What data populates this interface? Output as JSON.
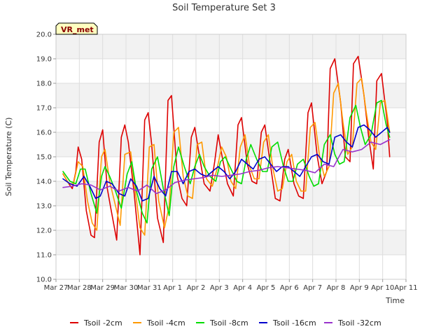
{
  "chart_data": {
    "type": "line",
    "title": "Soil Temperature Set 3",
    "xlabel": "Time",
    "ylabel": "Soil Temperature (C)",
    "badge": "VR_met",
    "ylim": [
      10.0,
      20.0
    ],
    "yticks": [
      "10.0",
      "11.0",
      "12.0",
      "13.0",
      "14.0",
      "15.0",
      "16.0",
      "17.0",
      "18.0",
      "19.0",
      "20.0"
    ],
    "xlim": [
      0,
      15
    ],
    "xticks": [
      "Mar 27",
      "Mar 28",
      "Mar 29",
      "Mar 30",
      "Mar 31",
      "Apr 1",
      "Apr 2",
      "Apr 3",
      "Apr 4",
      "Apr 5",
      "Apr 6",
      "Apr 7",
      "Apr 8",
      "Apr 9",
      "Apr 10",
      "Apr 11"
    ],
    "grid": true,
    "band_background": true,
    "legend_position": "bottom",
    "series": [
      {
        "name": "Tsoil -2cm",
        "color": "#dd0000",
        "x": [
          0.3,
          0.55,
          0.7,
          0.85,
          0.95,
          1.1,
          1.3,
          1.5,
          1.65,
          1.85,
          2.0,
          2.2,
          2.35,
          2.6,
          2.8,
          2.95,
          3.1,
          3.35,
          3.6,
          3.8,
          3.95,
          4.1,
          4.35,
          4.6,
          4.8,
          4.95,
          5.2,
          5.4,
          5.6,
          5.8,
          5.95,
          6.1,
          6.35,
          6.6,
          6.8,
          6.95,
          7.1,
          7.35,
          7.6,
          7.8,
          7.95,
          8.2,
          8.4,
          8.6,
          8.8,
          8.95,
          9.2,
          9.4,
          9.6,
          9.8,
          9.95,
          10.2,
          10.4,
          10.6,
          10.8,
          10.95,
          11.2,
          11.4,
          11.6,
          11.75,
          11.95,
          12.2,
          12.4,
          12.6,
          12.75,
          12.95,
          13.2,
          13.4,
          13.6,
          13.75,
          13.95,
          14.2,
          14.3
        ],
        "values": [
          14.3,
          13.9,
          13.7,
          14.4,
          15.4,
          14.9,
          12.8,
          11.8,
          11.7,
          15.6,
          16.1,
          13.7,
          12.9,
          11.6,
          15.8,
          16.3,
          15.6,
          13.5,
          11.0,
          16.5,
          16.8,
          15.5,
          12.5,
          11.5,
          17.3,
          17.5,
          14.2,
          13.3,
          13.0,
          15.8,
          16.2,
          15.3,
          13.9,
          13.6,
          14.8,
          15.9,
          15.1,
          13.9,
          13.4,
          16.3,
          16.6,
          14.7,
          14.0,
          13.9,
          16.0,
          16.3,
          14.6,
          13.3,
          13.2,
          14.9,
          15.3,
          13.9,
          13.4,
          13.3,
          16.8,
          17.2,
          15.0,
          13.9,
          14.4,
          18.6,
          19.0,
          17.2,
          15.0,
          14.8,
          18.8,
          19.1,
          17.5,
          15.8,
          14.5,
          18.1,
          18.4,
          16.4,
          15.0
        ]
      },
      {
        "name": "Tsoil -4cm",
        "color": "#ff9900",
        "x": [
          0.3,
          0.55,
          0.75,
          0.95,
          1.15,
          1.35,
          1.55,
          1.75,
          1.95,
          2.1,
          2.3,
          2.55,
          2.75,
          2.95,
          3.2,
          3.4,
          3.6,
          3.8,
          4.0,
          4.2,
          4.4,
          4.65,
          4.85,
          5.05,
          5.25,
          5.45,
          5.65,
          5.85,
          6.05,
          6.25,
          6.45,
          6.7,
          6.9,
          7.1,
          7.3,
          7.5,
          7.7,
          7.9,
          8.1,
          8.3,
          8.5,
          8.7,
          8.9,
          9.1,
          9.3,
          9.5,
          9.7,
          9.9,
          10.1,
          10.3,
          10.5,
          10.7,
          10.9,
          11.1,
          11.3,
          11.5,
          11.7,
          11.9,
          12.1,
          12.3,
          12.5,
          12.7,
          12.9,
          13.1,
          13.3,
          13.5,
          13.7,
          13.9,
          14.1,
          14.3
        ],
        "values": [
          14.3,
          13.9,
          13.9,
          14.8,
          14.6,
          13.2,
          12.3,
          12.0,
          15.0,
          15.3,
          14.0,
          13.0,
          12.2,
          15.1,
          15.2,
          13.6,
          12.1,
          11.8,
          15.4,
          15.5,
          13.2,
          12.1,
          13.0,
          16.0,
          16.2,
          14.2,
          13.4,
          13.3,
          15.5,
          15.6,
          14.1,
          13.8,
          14.5,
          15.4,
          15.0,
          14.0,
          13.7,
          15.4,
          15.9,
          14.6,
          14.1,
          14.1,
          15.6,
          15.9,
          14.5,
          13.6,
          13.7,
          14.8,
          15.1,
          14.0,
          13.6,
          13.6,
          16.2,
          16.4,
          15.0,
          14.2,
          14.6,
          17.6,
          18.0,
          16.4,
          15.1,
          15.4,
          18.0,
          18.2,
          16.8,
          15.6,
          15.3,
          17.2,
          17.3,
          16.0
        ]
      },
      {
        "name": "Tsoil -8cm",
        "color": "#00dd00",
        "x": [
          0.3,
          0.6,
          0.85,
          1.05,
          1.25,
          1.5,
          1.75,
          1.95,
          2.1,
          2.3,
          2.55,
          2.8,
          3.05,
          3.25,
          3.45,
          3.7,
          3.9,
          4.1,
          4.35,
          4.6,
          4.85,
          5.05,
          5.25,
          5.5,
          5.75,
          5.95,
          6.15,
          6.35,
          6.6,
          6.85,
          7.05,
          7.25,
          7.5,
          7.75,
          7.95,
          8.15,
          8.35,
          8.6,
          8.85,
          9.05,
          9.25,
          9.5,
          9.75,
          9.95,
          10.15,
          10.35,
          10.6,
          10.85,
          11.05,
          11.25,
          11.5,
          11.75,
          11.95,
          12.15,
          12.35,
          12.6,
          12.85,
          13.05,
          13.25,
          13.5,
          13.75,
          13.95,
          14.15,
          14.3
        ],
        "values": [
          14.4,
          14.0,
          13.9,
          14.5,
          14.5,
          13.5,
          12.7,
          14.2,
          14.6,
          14.2,
          13.6,
          12.9,
          14.3,
          14.8,
          13.6,
          12.7,
          12.3,
          14.5,
          15.0,
          13.7,
          12.6,
          14.6,
          15.4,
          14.6,
          13.9,
          14.6,
          15.1,
          14.6,
          14.2,
          14.0,
          14.8,
          15.0,
          14.5,
          14.0,
          13.9,
          14.9,
          15.5,
          14.9,
          14.4,
          14.4,
          15.4,
          15.6,
          14.6,
          14.0,
          14.0,
          14.7,
          14.9,
          14.2,
          13.8,
          13.9,
          15.5,
          15.9,
          15.1,
          14.7,
          14.8,
          16.6,
          17.1,
          16.2,
          15.5,
          15.9,
          17.2,
          17.3,
          16.3,
          15.8
        ]
      },
      {
        "name": "Tsoil -16cm",
        "color": "#0000cc",
        "x": [
          0.3,
          0.6,
          0.9,
          1.2,
          1.45,
          1.7,
          1.9,
          2.15,
          2.4,
          2.7,
          2.95,
          3.2,
          3.45,
          3.7,
          3.95,
          4.2,
          4.45,
          4.7,
          4.95,
          5.2,
          5.45,
          5.7,
          5.95,
          6.2,
          6.45,
          6.7,
          6.95,
          7.2,
          7.45,
          7.7,
          7.95,
          8.2,
          8.45,
          8.7,
          8.95,
          9.2,
          9.45,
          9.7,
          9.95,
          10.2,
          10.45,
          10.7,
          10.95,
          11.2,
          11.45,
          11.7,
          11.95,
          12.2,
          12.45,
          12.7,
          12.95,
          13.2,
          13.45,
          13.7,
          13.95,
          14.2,
          14.3
        ],
        "values": [
          14.1,
          13.9,
          13.8,
          14.2,
          13.8,
          13.3,
          13.4,
          14.0,
          13.9,
          13.5,
          13.4,
          14.1,
          13.8,
          13.2,
          13.3,
          14.2,
          13.7,
          13.4,
          14.4,
          14.4,
          13.9,
          14.4,
          14.5,
          14.3,
          14.2,
          14.4,
          14.6,
          14.4,
          14.1,
          14.4,
          14.9,
          14.7,
          14.5,
          14.9,
          15.0,
          14.7,
          14.4,
          14.6,
          14.6,
          14.4,
          14.2,
          14.6,
          15.0,
          15.1,
          14.8,
          14.7,
          15.8,
          15.9,
          15.6,
          15.4,
          16.2,
          16.3,
          16.1,
          15.8,
          16.0,
          16.2,
          16.0
        ]
      },
      {
        "name": "Tsoil -32cm",
        "color": "#9933cc",
        "x": [
          0.3,
          0.7,
          1.1,
          1.5,
          1.9,
          2.3,
          2.7,
          3.1,
          3.5,
          3.9,
          4.3,
          4.7,
          5.1,
          5.5,
          5.9,
          6.3,
          6.7,
          7.1,
          7.5,
          7.9,
          8.3,
          8.7,
          9.1,
          9.5,
          9.9,
          10.3,
          10.7,
          11.1,
          11.5,
          11.9,
          12.3,
          12.7,
          13.1,
          13.5,
          13.9,
          14.3
        ],
        "values": [
          13.75,
          13.8,
          13.9,
          13.85,
          13.65,
          13.8,
          13.6,
          13.75,
          13.6,
          13.85,
          13.5,
          13.65,
          13.95,
          14.05,
          14.1,
          14.15,
          14.25,
          14.2,
          14.25,
          14.3,
          14.4,
          14.45,
          14.55,
          14.6,
          14.55,
          14.5,
          14.45,
          14.35,
          14.7,
          14.6,
          15.3,
          15.2,
          15.3,
          15.6,
          15.5,
          15.7
        ]
      }
    ]
  }
}
